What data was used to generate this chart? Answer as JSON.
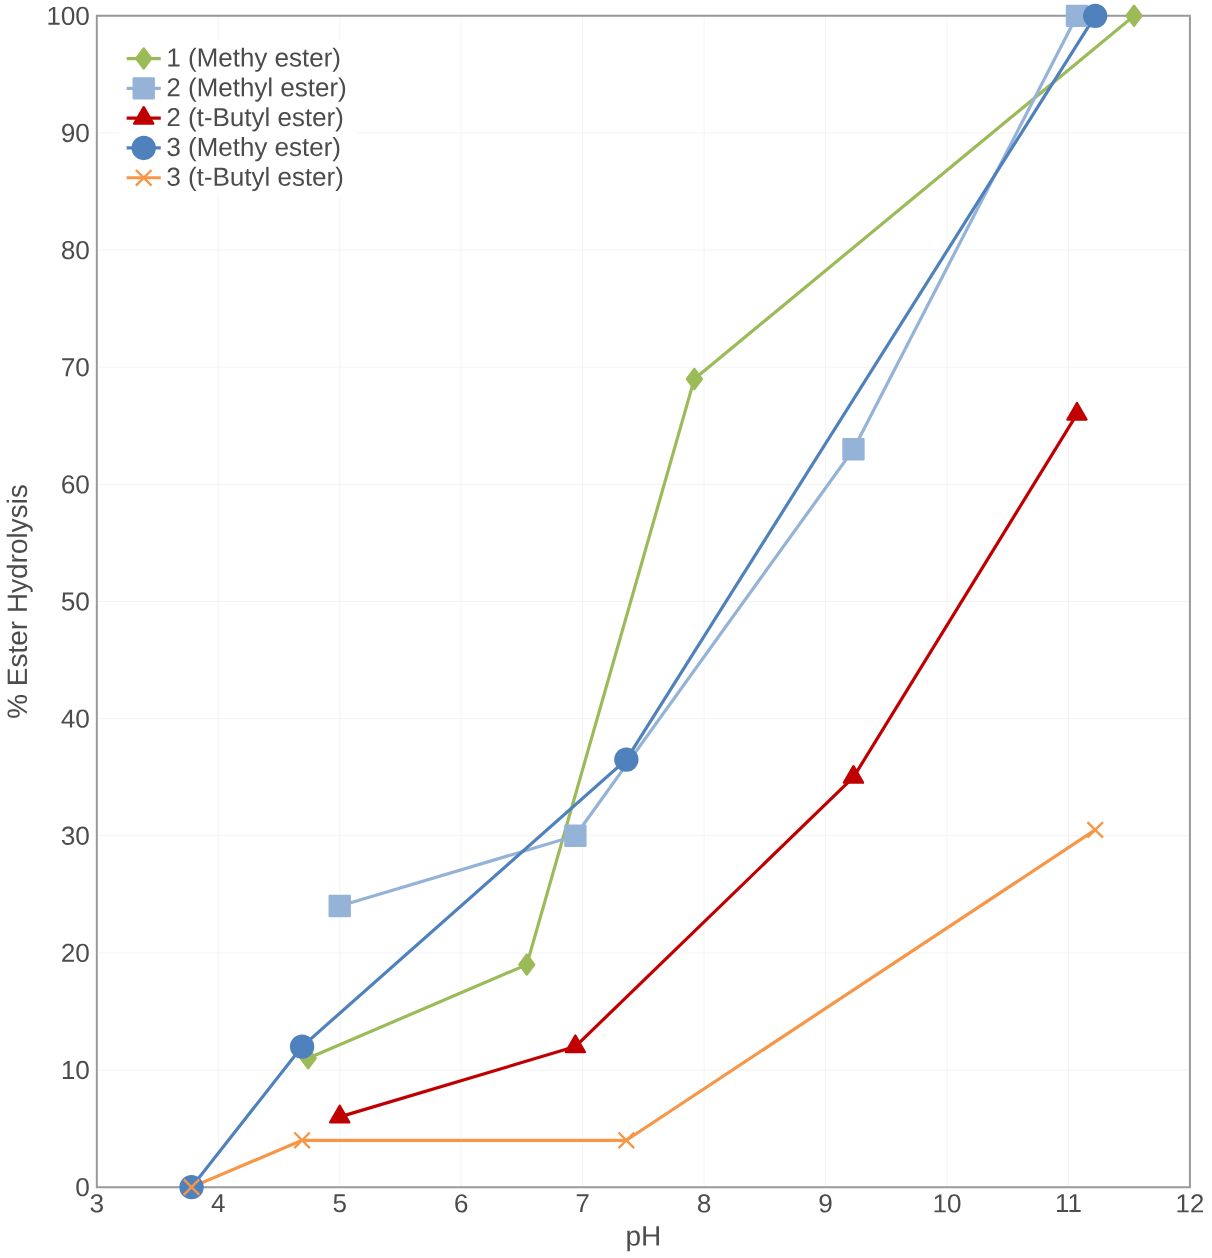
{
  "chart_data": {
    "type": "line",
    "xlabel": "pH",
    "ylabel": "% Ester Hydrolysis",
    "xlim": [
      3,
      12
    ],
    "ylim": [
      0,
      100
    ],
    "xticks": [
      3,
      4,
      5,
      6,
      7,
      8,
      9,
      10,
      11,
      12
    ],
    "yticks": [
      0,
      10,
      20,
      30,
      40,
      50,
      60,
      70,
      80,
      90,
      100
    ],
    "grid": true,
    "legend": "top left",
    "line_style": "solid",
    "series": [
      {
        "name": "1 (Methy ester)",
        "color": "#9bbb59",
        "marker": "diamond",
        "x": [
          4.74,
          6.54,
          7.92,
          11.54
        ],
        "values": [
          11,
          19,
          69,
          100
        ]
      },
      {
        "name": "2 (Methyl ester)",
        "color": "#95b3d7",
        "marker": "square",
        "x": [
          5.0,
          6.94,
          9.23,
          11.07
        ],
        "values": [
          24,
          30,
          63,
          100
        ]
      },
      {
        "name": "2 (t-Butyl ester)",
        "color": "#c00000",
        "marker": "triangle",
        "x": [
          5.0,
          6.94,
          9.23,
          11.07
        ],
        "values": [
          6,
          12,
          35,
          66
        ]
      },
      {
        "name": "3 (Methy ester)",
        "color": "#4f81bd",
        "marker": "circle",
        "x": [
          3.78,
          4.69,
          7.36,
          11.22
        ],
        "values": [
          0,
          12,
          36.5,
          100
        ]
      },
      {
        "name": "3 (t-Butyl ester)",
        "color": "#f79646",
        "marker": "cross",
        "x": [
          3.78,
          4.69,
          7.36,
          11.22
        ],
        "values": [
          0,
          4,
          4,
          30.5
        ]
      }
    ]
  }
}
